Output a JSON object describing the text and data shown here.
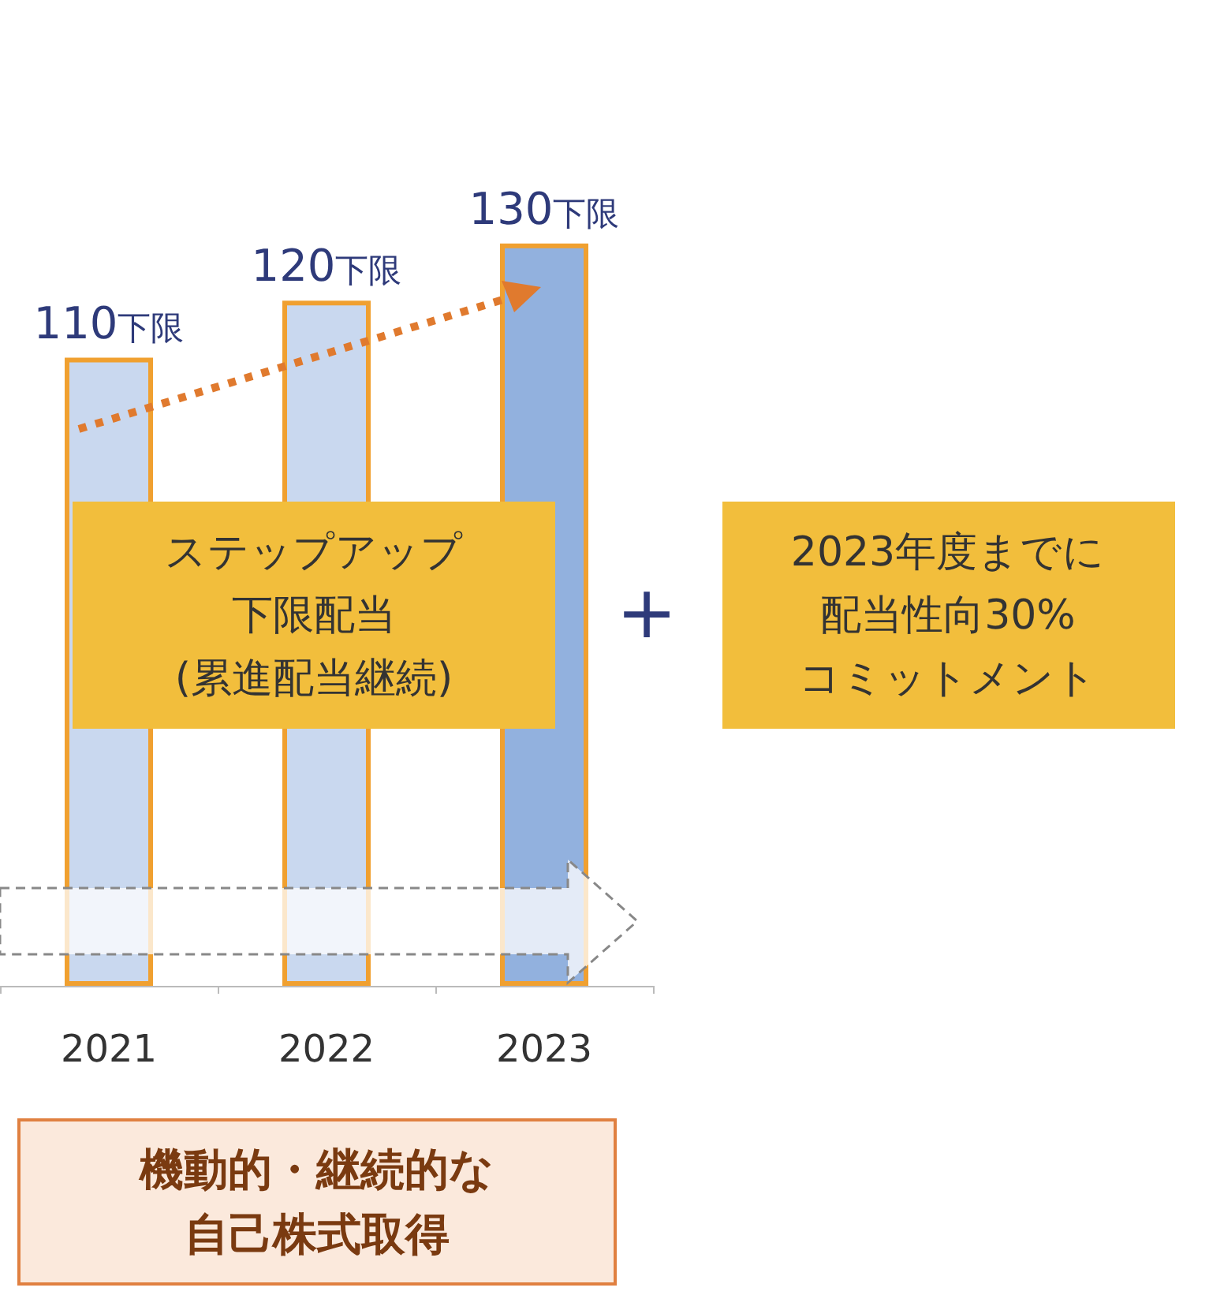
{
  "chart_data": {
    "type": "bar",
    "categories": [
      "2021",
      "2022",
      "2023"
    ],
    "values": [
      110,
      120,
      130
    ],
    "colors": [
      "#c9d8ef",
      "#c9d8ef",
      "#92b1de"
    ],
    "value_labels": [
      "110下限",
      "120下限",
      "130下限"
    ],
    "tick_labels": "x",
    "annotations": [
      "ステップアップ",
      "下限配当",
      "(累進配当継続)",
      "+",
      "2023年度までに",
      "配当性向30%",
      "コミットメント",
      "機動的・継続的な",
      "自己株式取得"
    ]
  }
}
